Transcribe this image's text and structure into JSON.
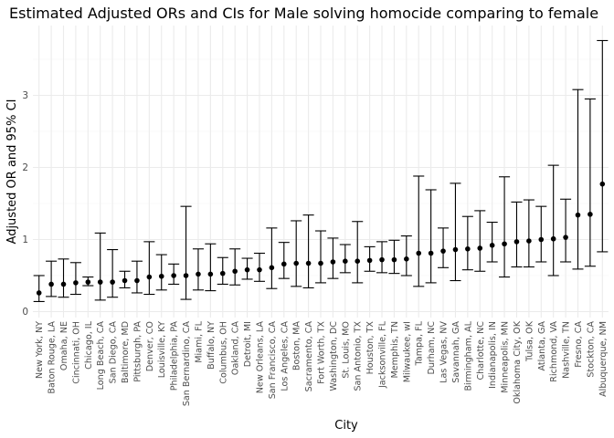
{
  "chart_data": {
    "type": "scatter",
    "title": "Estimated Adjusted ORs and CIs for Male solving homocide comparing to female",
    "xlabel": "City",
    "ylabel": "Adjusted OR and 95% CI",
    "ylim": [
      0,
      3.85
    ],
    "yticks": [
      0,
      1,
      2,
      3
    ],
    "grid": true,
    "legend": "none",
    "colors": {
      "point": "#000000",
      "errorbar": "#000000",
      "grid_major": "#ebebeb",
      "grid_minor": "#f5f5f5"
    },
    "categories": [
      "New York, NY",
      "Baton Rouge, LA",
      "Omaha, NE",
      "Cincinnati, OH",
      "Chicago, IL",
      "Long Beach, CA",
      "San Diego, CA",
      "Baltimore, MD",
      "Pittsburgh, PA",
      "Denver, CO",
      "Louisville, KY",
      "Philadelphia, PA",
      "San Bernardino, CA",
      "Miami, FL",
      "Buffalo, NY",
      "Columbus, OH",
      "Oakland, CA",
      "Detroit, MI",
      "New Orleans, LA",
      "San Francisco, CA",
      "Los Angeles, CA",
      "Boston, MA",
      "Sacramento, CA",
      "Fort Worth, TX",
      "Washington, DC",
      "St. Louis, MO",
      "San Antonio, TX",
      "Houston, TX",
      "Jacksonville, FL",
      "Memphis, TN",
      "Milwaukee, wI",
      "Tampa, FL",
      "Durham, NC",
      "Las Vegas, NV",
      "Savannah, GA",
      "Birmingham, AL",
      "Charlotte, NC",
      "Indianapolis, IN",
      "Minneapolis, MN",
      "Oklahoma City, OK",
      "Tulsa, OK",
      "Atlanta, GA",
      "Richmond, VA",
      "Nashville, TN",
      "Fresno, CA",
      "Stockton, CA",
      "Albuquerque, NM"
    ],
    "estimate": [
      0.26,
      0.38,
      0.38,
      0.4,
      0.41,
      0.41,
      0.41,
      0.43,
      0.43,
      0.48,
      0.49,
      0.5,
      0.5,
      0.52,
      0.52,
      0.53,
      0.56,
      0.58,
      0.58,
      0.61,
      0.66,
      0.67,
      0.67,
      0.67,
      0.69,
      0.7,
      0.7,
      0.71,
      0.72,
      0.72,
      0.73,
      0.81,
      0.81,
      0.84,
      0.86,
      0.87,
      0.88,
      0.92,
      0.94,
      0.97,
      0.98,
      1.0,
      1.01,
      1.03,
      1.34,
      1.35,
      1.77
    ],
    "ci_low": [
      0.14,
      0.21,
      0.2,
      0.24,
      0.36,
      0.16,
      0.2,
      0.33,
      0.26,
      0.24,
      0.3,
      0.38,
      0.17,
      0.3,
      0.29,
      0.38,
      0.37,
      0.45,
      0.42,
      0.32,
      0.46,
      0.35,
      0.33,
      0.4,
      0.46,
      0.54,
      0.4,
      0.56,
      0.54,
      0.53,
      0.5,
      0.35,
      0.4,
      0.61,
      0.43,
      0.58,
      0.56,
      0.69,
      0.48,
      0.62,
      0.62,
      0.69,
      0.5,
      0.69,
      0.59,
      0.63,
      0.83
    ],
    "ci_high": [
      0.5,
      0.7,
      0.73,
      0.68,
      0.48,
      1.09,
      0.86,
      0.56,
      0.7,
      0.97,
      0.79,
      0.66,
      1.46,
      0.87,
      0.94,
      0.75,
      0.87,
      0.74,
      0.81,
      1.16,
      0.96,
      1.26,
      1.34,
      1.12,
      1.02,
      0.93,
      1.25,
      0.9,
      0.97,
      0.99,
      1.05,
      1.88,
      1.69,
      1.16,
      1.78,
      1.32,
      1.4,
      1.24,
      1.87,
      1.52,
      1.55,
      1.46,
      2.03,
      1.56,
      3.08,
      2.95,
      3.76
    ]
  }
}
